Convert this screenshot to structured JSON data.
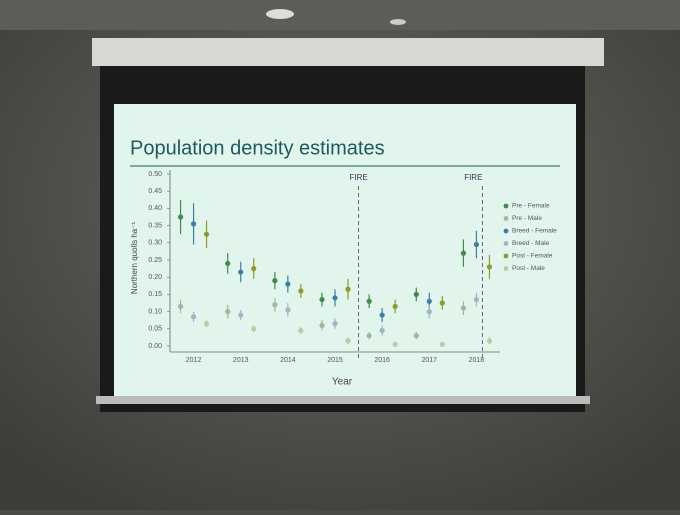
{
  "chart_data": {
    "type": "scatter",
    "title": "Population density estimates",
    "x_label": "Year",
    "y_label": "Northern quolls ha⁻¹",
    "categories": [
      "2012",
      "2013",
      "2014",
      "2015",
      "2016",
      "2017",
      "2018"
    ],
    "annotations": [
      "FIRE",
      "FIRE"
    ],
    "ylim": [
      0,
      0.5
    ],
    "yticks": [
      {
        "value": 0,
        "label": "0.00"
      },
      {
        "value": 0.05,
        "label": "0.05"
      },
      {
        "value": 0.1,
        "label": "0.10"
      },
      {
        "value": 0.15,
        "label": "0.15"
      },
      {
        "value": 0.2,
        "label": "0.20"
      },
      {
        "value": 0.25,
        "label": "0.25"
      },
      {
        "value": 0.3,
        "label": "0.30"
      },
      {
        "value": 0.35,
        "label": "0.35"
      },
      {
        "value": 0.4,
        "label": "0.40"
      },
      {
        "value": 0.45,
        "label": "0.45"
      },
      {
        "value": 0.5,
        "label": "0.50"
      }
    ],
    "legend": "right",
    "series": [
      {
        "name": "Pre - Female",
        "color": "#3f8a4c",
        "values": [
          0.375,
          0.24,
          0.19,
          0.135,
          0.13,
          0.15,
          0.27
        ],
        "errors": [
          0.05,
          0.03,
          0.025,
          0.02,
          0.02,
          0.02,
          0.04
        ]
      },
      {
        "name": "Pre - Male",
        "color": "#9db89f",
        "values": [
          0.115,
          0.1,
          0.12,
          0.06,
          0.03,
          0.03,
          0.11
        ],
        "errors": [
          0.02,
          0.02,
          0.02,
          0.015,
          0.01,
          0.01,
          0.02
        ]
      },
      {
        "name": "Breed - Female",
        "color": "#3b7fa8",
        "values": [
          0.355,
          0.215,
          0.18,
          0.14,
          0.09,
          0.13,
          0.295
        ],
        "errors": [
          0.06,
          0.03,
          0.025,
          0.025,
          0.02,
          0.025,
          0.04
        ]
      },
      {
        "name": "Breed - Male",
        "color": "#9fb6c2",
        "values": [
          0.085,
          0.09,
          0.105,
          0.065,
          0.045,
          0.1,
          0.135
        ],
        "errors": [
          0.015,
          0.015,
          0.02,
          0.015,
          0.015,
          0.02,
          0.02
        ]
      },
      {
        "name": "Post - Female",
        "color": "#8c9c2c",
        "values": [
          0.325,
          0.225,
          0.16,
          0.165,
          0.115,
          0.125,
          0.23
        ],
        "errors": [
          0.04,
          0.03,
          0.02,
          0.03,
          0.02,
          0.02,
          0.035
        ]
      },
      {
        "name": "Post - Male",
        "color": "#bfc9a6",
        "values": [
          0.065,
          0.05,
          0.045,
          0.015,
          0.005,
          0.005,
          0.015
        ],
        "errors": [
          0.01,
          0.01,
          0.01,
          0.01,
          0,
          0,
          0.01
        ]
      }
    ]
  }
}
